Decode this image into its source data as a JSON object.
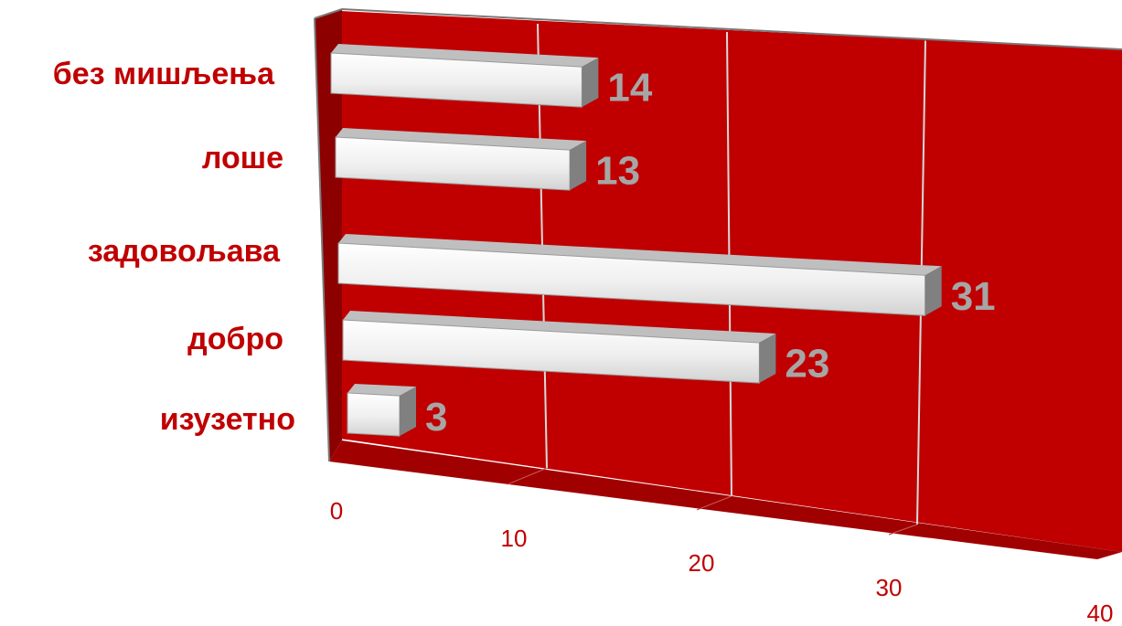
{
  "chart_data": {
    "type": "bar",
    "orientation": "horizontal",
    "style": "3d",
    "categories": [
      "без мишљења",
      "лоше",
      "задовољава",
      "добро",
      "изузетно"
    ],
    "values": [
      14,
      13,
      31,
      23,
      3
    ],
    "xlim": [
      0,
      40
    ],
    "xticks": [
      "0",
      "10",
      "20",
      "30",
      "40"
    ],
    "grid": true,
    "legend": "none",
    "title": "",
    "xlabel": "",
    "ylabel": ""
  },
  "colors": {
    "back_wall": "#c00000",
    "side_wall": "#8c0000",
    "floor": "#a00000",
    "label_text": "#c00000",
    "value_text": "#a6a6a6",
    "gridline": "#d9d9d9",
    "bar_face": "#f2f2f2",
    "bar_top": "#bfbfbf",
    "bar_end": "#808080"
  }
}
